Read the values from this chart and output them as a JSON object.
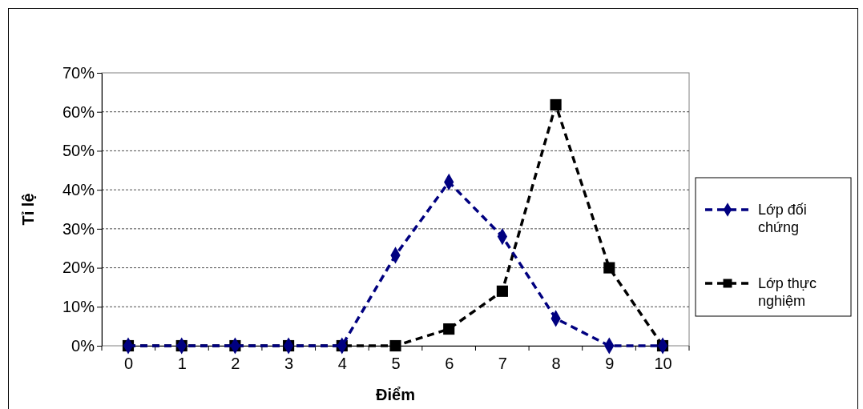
{
  "chart_data": {
    "type": "line",
    "xlabel": "Điểm",
    "ylabel": "Tỉ lệ",
    "categories": [
      "0",
      "1",
      "2",
      "3",
      "4",
      "5",
      "6",
      "7",
      "8",
      "9",
      "10"
    ],
    "series": [
      {
        "name": "Lớp đối chứng",
        "color": "#000080",
        "marker": "diamond",
        "values": [
          0,
          0,
          0,
          0,
          0,
          23.2,
          42,
          28,
          7,
          0,
          0
        ]
      },
      {
        "name": "Lớp thực nghiệm",
        "color": "#000000",
        "marker": "square",
        "values": [
          0,
          0,
          0,
          0,
          0,
          0,
          4.3,
          14,
          61.8,
          20,
          0
        ]
      }
    ],
    "ylim": [
      0,
      70
    ],
    "yticks": [
      {
        "value": 0,
        "label": "0%"
      },
      {
        "value": 10,
        "label": "10%"
      },
      {
        "value": 20,
        "label": "20%"
      },
      {
        "value": 30,
        "label": "30%"
      },
      {
        "value": 40,
        "label": "40%"
      },
      {
        "value": 50,
        "label": "50%"
      },
      {
        "value": 60,
        "label": "60%"
      },
      {
        "value": 70,
        "label": "70%"
      }
    ],
    "grid": "y",
    "legend": "right",
    "line_style": "dashed"
  }
}
